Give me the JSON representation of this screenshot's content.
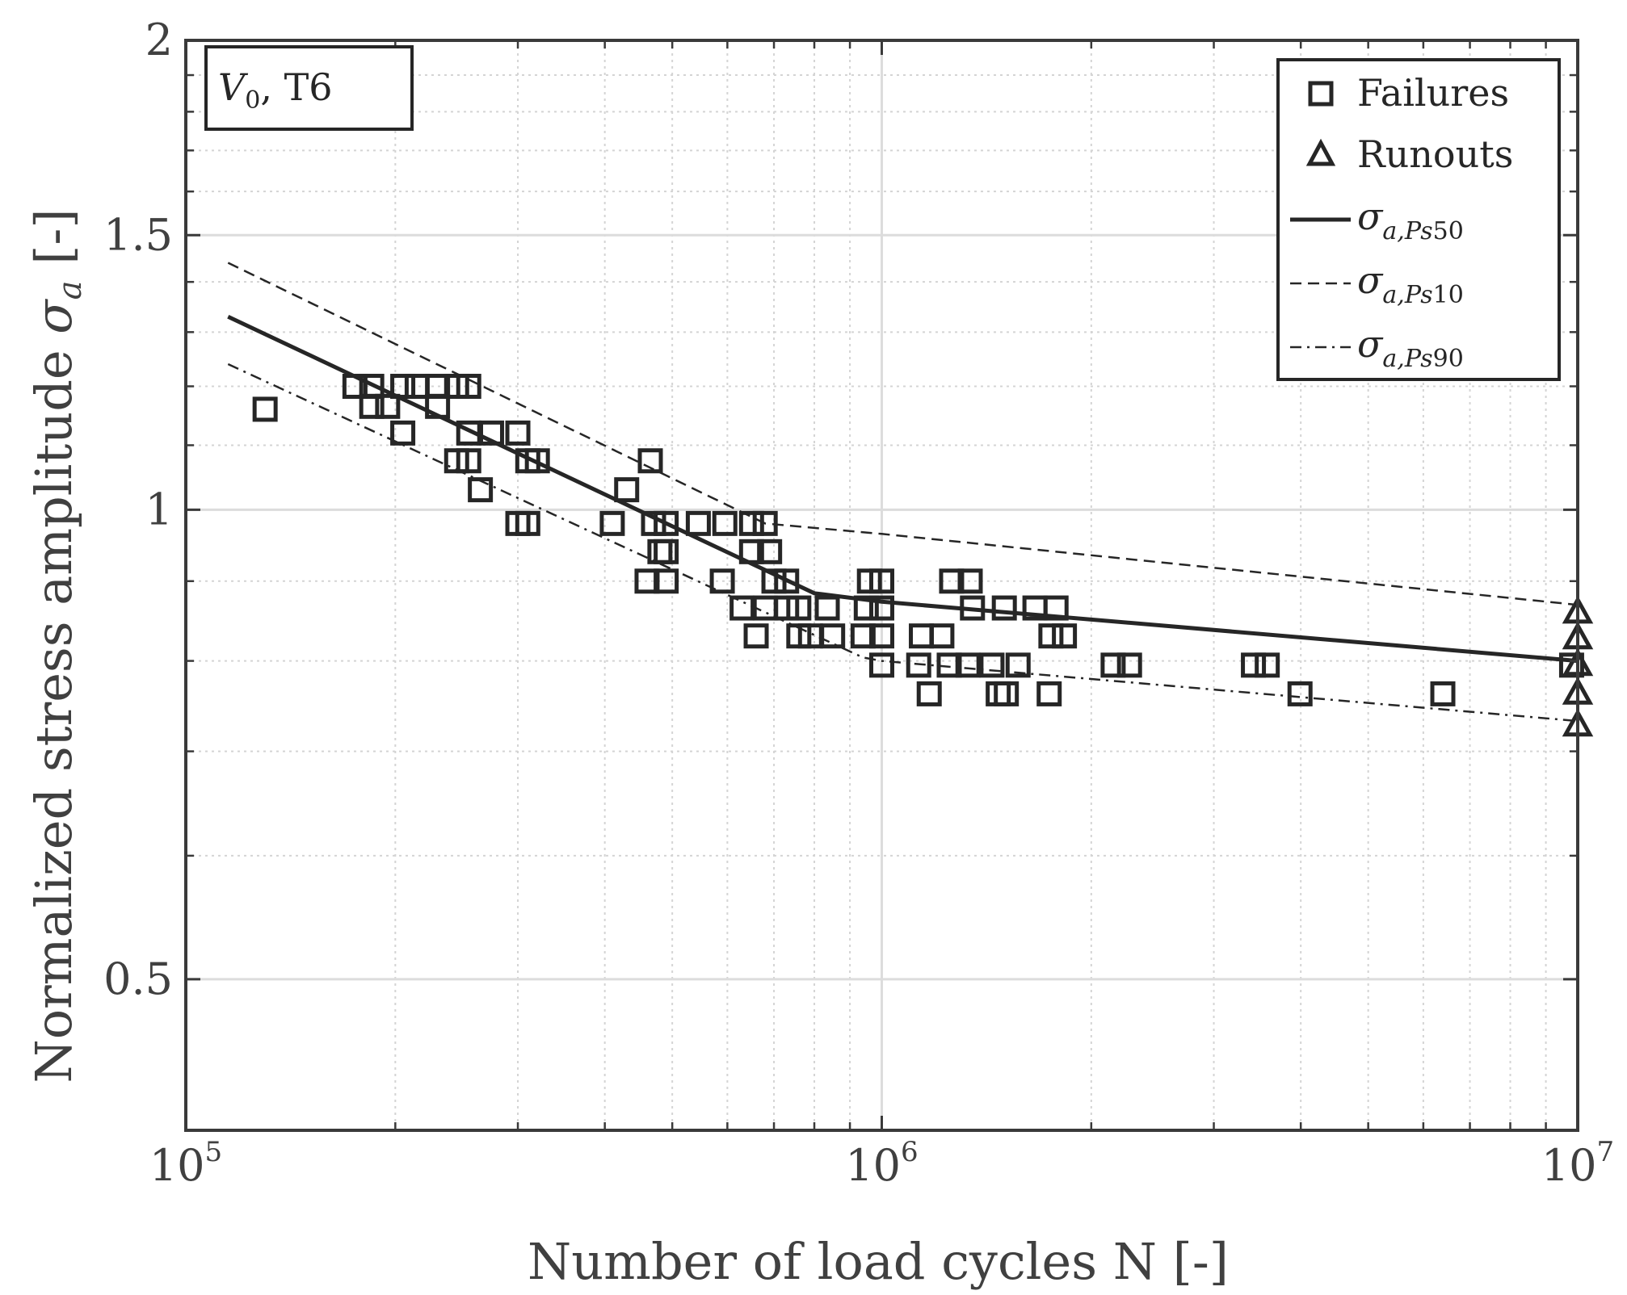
{
  "chart_data": {
    "type": "scatter",
    "title": "",
    "annotation": {
      "main": "V",
      "sub": "0",
      "rest": ", T6"
    },
    "xlabel": "Number of load cycles N [-]",
    "ylabel_main": "Normalized stress amplitude ",
    "ylabel_symbol": "σ",
    "ylabel_symbol_sub": "a",
    "ylabel_unit": " [-]",
    "xscale": "log",
    "yscale": "log",
    "xlim": [
      100000,
      10000000
    ],
    "ylim": [
      0.4,
      2
    ],
    "grid": true,
    "legend_position": "top-right",
    "x_ticks": [
      {
        "value": 100000,
        "base": "10",
        "exp": "5"
      },
      {
        "value": 1000000,
        "base": "10",
        "exp": "6"
      },
      {
        "value": 10000000,
        "base": "10",
        "exp": "7"
      }
    ],
    "y_ticks": [
      {
        "value": 0.5,
        "label": "0.5"
      },
      {
        "value": 1,
        "label": "1"
      },
      {
        "value": 1.5,
        "label": "1.5"
      },
      {
        "value": 2,
        "label": "2"
      }
    ],
    "legend": [
      {
        "key": "failures",
        "label": "Failures",
        "marker": "square"
      },
      {
        "key": "runouts",
        "label": "Runouts",
        "marker": "triangle"
      },
      {
        "key": "ps50",
        "symbol": "σ",
        "sub": "a,Ps",
        "num": "50",
        "style": "solid"
      },
      {
        "key": "ps10",
        "symbol": "σ",
        "sub": "a,Ps",
        "num": "10",
        "style": "dashed"
      },
      {
        "key": "ps90",
        "symbol": "σ",
        "sub": "a,Ps",
        "num": "90",
        "style": "dashdot"
      }
    ],
    "series": [
      {
        "name": "Failures",
        "marker": "square",
        "points": [
          [
            130000,
            1.16
          ],
          [
            175000,
            1.2
          ],
          [
            185000,
            1.2
          ],
          [
            205000,
            1.2
          ],
          [
            215000,
            1.2
          ],
          [
            230000,
            1.2
          ],
          [
            245000,
            1.2
          ],
          [
            255000,
            1.2
          ],
          [
            185000,
            1.165
          ],
          [
            195000,
            1.165
          ],
          [
            230000,
            1.165
          ],
          [
            205000,
            1.12
          ],
          [
            255000,
            1.12
          ],
          [
            275000,
            1.12
          ],
          [
            300000,
            1.12
          ],
          [
            245000,
            1.075
          ],
          [
            255000,
            1.075
          ],
          [
            310000,
            1.075
          ],
          [
            320000,
            1.075
          ],
          [
            465000,
            1.075
          ],
          [
            265000,
            1.03
          ],
          [
            430000,
            1.03
          ],
          [
            300000,
            0.98
          ],
          [
            310000,
            0.98
          ],
          [
            410000,
            0.98
          ],
          [
            470000,
            0.98
          ],
          [
            490000,
            0.98
          ],
          [
            545000,
            0.98
          ],
          [
            595000,
            0.98
          ],
          [
            650000,
            0.98
          ],
          [
            680000,
            0.98
          ],
          [
            480000,
            0.94
          ],
          [
            490000,
            0.94
          ],
          [
            650000,
            0.94
          ],
          [
            690000,
            0.94
          ],
          [
            460000,
            0.9
          ],
          [
            490000,
            0.9
          ],
          [
            590000,
            0.9
          ],
          [
            700000,
            0.9
          ],
          [
            730000,
            0.9
          ],
          [
            960000,
            0.9
          ],
          [
            1000000,
            0.9
          ],
          [
            1260000,
            0.9
          ],
          [
            1340000,
            0.9
          ],
          [
            630000,
            0.865
          ],
          [
            680000,
            0.865
          ],
          [
            730000,
            0.865
          ],
          [
            760000,
            0.865
          ],
          [
            835000,
            0.865
          ],
          [
            950000,
            0.865
          ],
          [
            1000000,
            0.865
          ],
          [
            1350000,
            0.865
          ],
          [
            1500000,
            0.865
          ],
          [
            1660000,
            0.865
          ],
          [
            1780000,
            0.865
          ],
          [
            660000,
            0.83
          ],
          [
            760000,
            0.83
          ],
          [
            790000,
            0.83
          ],
          [
            850000,
            0.83
          ],
          [
            940000,
            0.83
          ],
          [
            1000000,
            0.83
          ],
          [
            1140000,
            0.83
          ],
          [
            1220000,
            0.83
          ],
          [
            1750000,
            0.83
          ],
          [
            1830000,
            0.83
          ],
          [
            1000000,
            0.795
          ],
          [
            1130000,
            0.795
          ],
          [
            1250000,
            0.795
          ],
          [
            1330000,
            0.795
          ],
          [
            1440000,
            0.795
          ],
          [
            1570000,
            0.795
          ],
          [
            2150000,
            0.795
          ],
          [
            2270000,
            0.795
          ],
          [
            3420000,
            0.795
          ],
          [
            3580000,
            0.795
          ],
          [
            9800000,
            0.795
          ],
          [
            1170000,
            0.762
          ],
          [
            1470000,
            0.762
          ],
          [
            1510000,
            0.762
          ],
          [
            1740000,
            0.762
          ],
          [
            3990000,
            0.762
          ],
          [
            6400000,
            0.762
          ]
        ]
      },
      {
        "name": "Runouts",
        "marker": "triangle",
        "points": [
          [
            10000000,
            0.86
          ],
          [
            10000000,
            0.828
          ],
          [
            10000000,
            0.796
          ],
          [
            10000000,
            0.763
          ],
          [
            10000000,
            0.728
          ]
        ]
      },
      {
        "name": "σa,Ps50",
        "style": "solid",
        "points": [
          [
            115000,
            1.33
          ],
          [
            800000,
            0.884
          ],
          [
            1000000,
            0.873
          ],
          [
            10000000,
            0.8
          ]
        ]
      },
      {
        "name": "σa,Ps10",
        "style": "dashed",
        "points": [
          [
            115000,
            1.44
          ],
          [
            680000,
            0.98
          ],
          [
            1000000,
            0.965
          ],
          [
            10000000,
            0.869
          ]
        ]
      },
      {
        "name": "σa,Ps90",
        "style": "dashdot",
        "points": [
          [
            115000,
            1.24
          ],
          [
            940000,
            0.804
          ],
          [
            1000000,
            0.8
          ],
          [
            10000000,
            0.732
          ]
        ]
      }
    ]
  }
}
